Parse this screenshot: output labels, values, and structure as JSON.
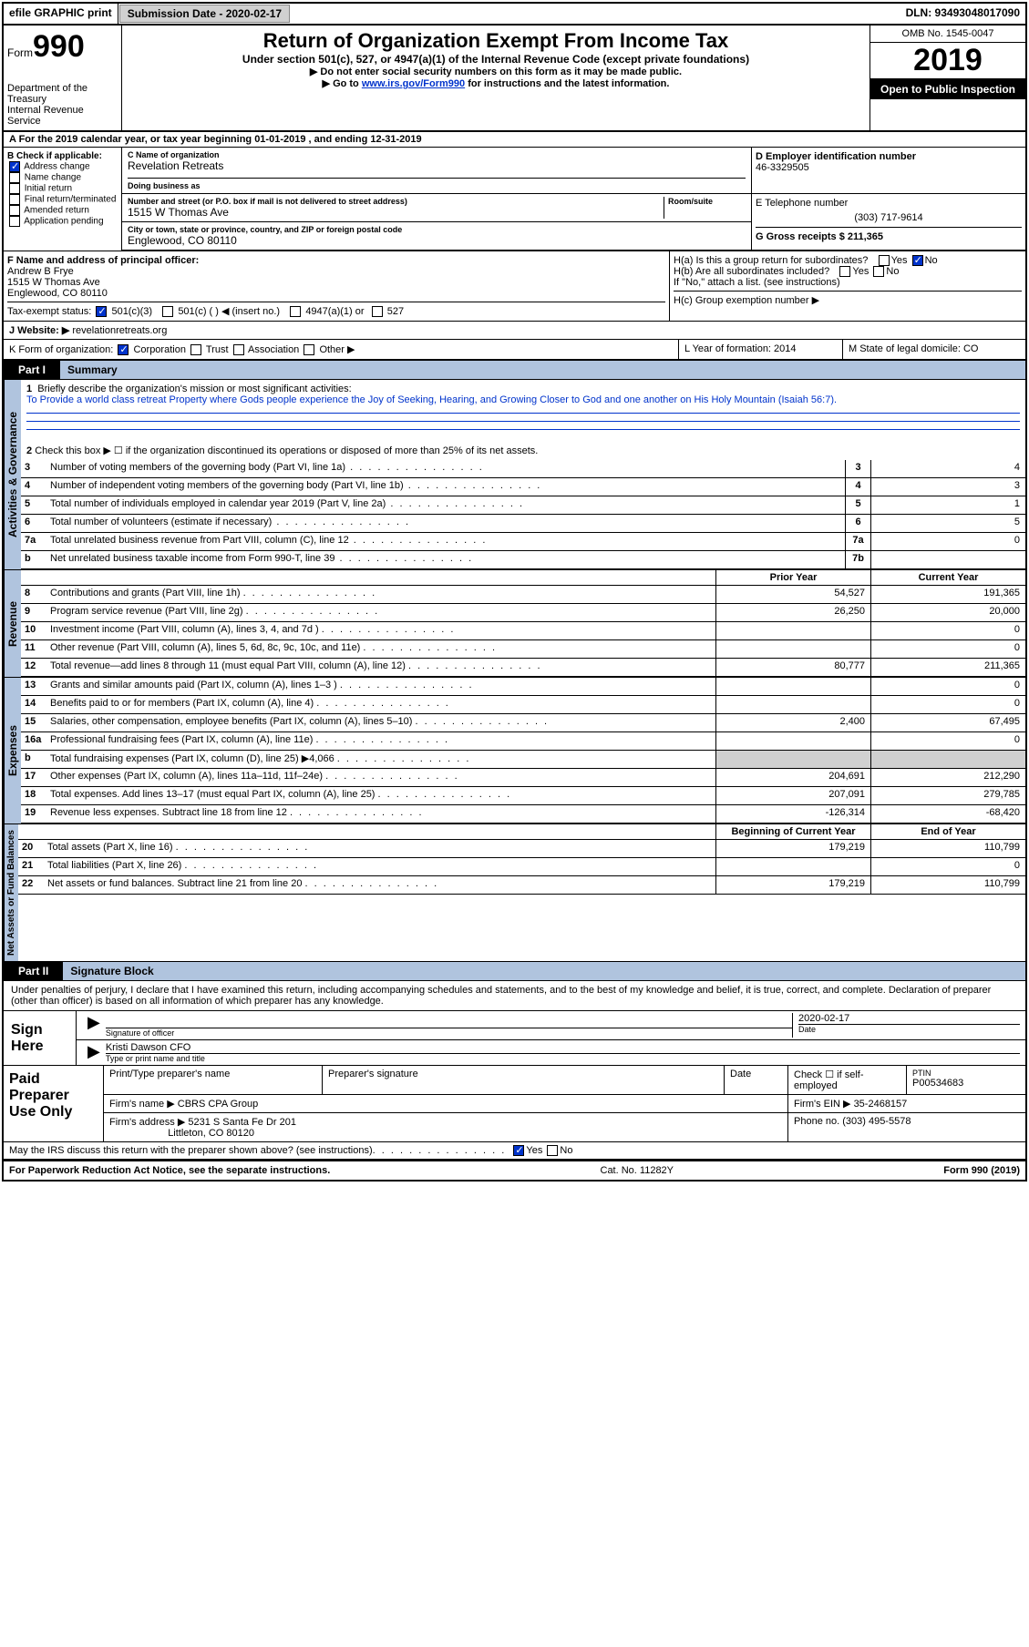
{
  "top_bar": {
    "efile": "efile GRAPHIC print",
    "submission_label": "Submission Date - 2020-02-17",
    "dln": "DLN: 93493048017090"
  },
  "header": {
    "form_word": "Form",
    "form_number": "990",
    "dept1": "Department of the Treasury",
    "dept2": "Internal Revenue Service",
    "title": "Return of Organization Exempt From Income Tax",
    "subtitle": "Under section 501(c), 527, or 4947(a)(1) of the Internal Revenue Code (except private foundations)",
    "instr1": "▶ Do not enter social security numbers on this form as it may be made public.",
    "instr2_prefix": "▶ Go to ",
    "instr2_link": "www.irs.gov/Form990",
    "instr2_suffix": " for instructions and the latest information.",
    "omb": "OMB No. 1545-0047",
    "year": "2019",
    "open_insp": "Open to Public Inspection"
  },
  "row_a": "A For the 2019 calendar year, or tax year beginning 01-01-2019    , and ending 12-31-2019",
  "section_b": {
    "label": "B Check if applicable:",
    "items": [
      "Address change",
      "Name change",
      "Initial return",
      "Final return/terminated",
      "Amended return",
      "Application pending"
    ],
    "checked_index": 0
  },
  "section_c": {
    "name_label": "C Name of organization",
    "name": "Revelation Retreats",
    "dba_label": "Doing business as",
    "dba": "",
    "addr_label": "Number and street (or P.O. box if mail is not delivered to street address)",
    "room_label": "Room/suite",
    "addr": "1515 W Thomas Ave",
    "city_label": "City or town, state or province, country, and ZIP or foreign postal code",
    "city": "Englewood, CO  80110"
  },
  "section_d": {
    "ein_label": "D Employer identification number",
    "ein": "46-3329505",
    "phone_label": "E Telephone number",
    "phone": "(303) 717-9614",
    "gross_label": "G Gross receipts $ 211,365"
  },
  "section_f": {
    "label": "F  Name and address of principal officer:",
    "name": "Andrew B Frye",
    "addr1": "1515 W Thomas Ave",
    "addr2": "Englewood, CO  80110"
  },
  "section_h": {
    "ha": "H(a)  Is this a group return for subordinates?",
    "ha_yes": "Yes",
    "ha_no": "No",
    "ha_checked": "No",
    "hb": "H(b)  Are all subordinates included?",
    "hb_yes": "Yes",
    "hb_no": "No",
    "hb_note": "If \"No,\" attach a list. (see instructions)",
    "hc": "H(c)  Group exemption number ▶"
  },
  "tax_exempt": {
    "label": "Tax-exempt status:",
    "opt1": "501(c)(3)",
    "opt1_checked": true,
    "opt2": "501(c) (  ) ◀ (insert no.)",
    "opt3": "4947(a)(1) or",
    "opt4": "527"
  },
  "website": {
    "label": "J   Website: ▶",
    "value": "revelationretreats.org"
  },
  "section_k": {
    "label": "K Form of organization:",
    "opts": [
      "Corporation",
      "Trust",
      "Association",
      "Other ▶"
    ],
    "checked_index": 0
  },
  "section_l": {
    "label": "L Year of formation: 2014"
  },
  "section_m": {
    "label": "M State of legal domicile: CO"
  },
  "part1": {
    "tab": "Part I",
    "title": "Summary",
    "q1_label": "1",
    "q1_text": "Briefly describe the organization's mission or most significant activities:",
    "q1_answer": "To Provide a world class retreat Property where Gods people experience the Joy of Seeking, Hearing, and Growing Closer to God and one another on His Holy Mountain (Isaiah 56:7).",
    "q2": "Check this box ▶ ☐  if the organization discontinued its operations or disposed of more than 25% of its net assets."
  },
  "governance_lines": [
    {
      "num": "3",
      "desc": "Number of voting members of the governing body (Part VI, line 1a)",
      "box": "3",
      "val": "4"
    },
    {
      "num": "4",
      "desc": "Number of independent voting members of the governing body (Part VI, line 1b)",
      "box": "4",
      "val": "3"
    },
    {
      "num": "5",
      "desc": "Total number of individuals employed in calendar year 2019 (Part V, line 2a)",
      "box": "5",
      "val": "1"
    },
    {
      "num": "6",
      "desc": "Total number of volunteers (estimate if necessary)",
      "box": "6",
      "val": "5"
    },
    {
      "num": "7a",
      "desc": "Total unrelated business revenue from Part VIII, column (C), line 12",
      "box": "7a",
      "val": "0"
    },
    {
      "num": "b",
      "desc": "Net unrelated business taxable income from Form 990-T, line 39",
      "box": "7b",
      "val": ""
    }
  ],
  "twocol_header": {
    "h1": "Prior Year",
    "h2": "Current Year"
  },
  "revenue_lines": [
    {
      "num": "8",
      "desc": "Contributions and grants (Part VIII, line 1h)",
      "py": "54,527",
      "cy": "191,365"
    },
    {
      "num": "9",
      "desc": "Program service revenue (Part VIII, line 2g)",
      "py": "26,250",
      "cy": "20,000"
    },
    {
      "num": "10",
      "desc": "Investment income (Part VIII, column (A), lines 3, 4, and 7d )",
      "py": "",
      "cy": "0"
    },
    {
      "num": "11",
      "desc": "Other revenue (Part VIII, column (A), lines 5, 6d, 8c, 9c, 10c, and 11e)",
      "py": "",
      "cy": "0"
    },
    {
      "num": "12",
      "desc": "Total revenue—add lines 8 through 11 (must equal Part VIII, column (A), line 12)",
      "py": "80,777",
      "cy": "211,365"
    }
  ],
  "expense_lines": [
    {
      "num": "13",
      "desc": "Grants and similar amounts paid (Part IX, column (A), lines 1–3 )",
      "py": "",
      "cy": "0"
    },
    {
      "num": "14",
      "desc": "Benefits paid to or for members (Part IX, column (A), line 4)",
      "py": "",
      "cy": "0"
    },
    {
      "num": "15",
      "desc": "Salaries, other compensation, employee benefits (Part IX, column (A), lines 5–10)",
      "py": "2,400",
      "cy": "67,495"
    },
    {
      "num": "16a",
      "desc": "Professional fundraising fees (Part IX, column (A), line 11e)",
      "py": "",
      "cy": "0"
    },
    {
      "num": "b",
      "desc": "Total fundraising expenses (Part IX, column (D), line 25) ▶4,066",
      "py": "shade",
      "cy": "shade"
    },
    {
      "num": "17",
      "desc": "Other expenses (Part IX, column (A), lines 11a–11d, 11f–24e)",
      "py": "204,691",
      "cy": "212,290"
    },
    {
      "num": "18",
      "desc": "Total expenses. Add lines 13–17 (must equal Part IX, column (A), line 25)",
      "py": "207,091",
      "cy": "279,785"
    },
    {
      "num": "19",
      "desc": "Revenue less expenses. Subtract line 18 from line 12",
      "py": "-126,314",
      "cy": "-68,420"
    }
  ],
  "netassets_header": {
    "h1": "Beginning of Current Year",
    "h2": "End of Year"
  },
  "netassets_lines": [
    {
      "num": "20",
      "desc": "Total assets (Part X, line 16)",
      "py": "179,219",
      "cy": "110,799"
    },
    {
      "num": "21",
      "desc": "Total liabilities (Part X, line 26)",
      "py": "",
      "cy": "0"
    },
    {
      "num": "22",
      "desc": "Net assets or fund balances. Subtract line 21 from line 20",
      "py": "179,219",
      "cy": "110,799"
    }
  ],
  "vtabs": {
    "gov": "Activities & Governance",
    "rev": "Revenue",
    "exp": "Expenses",
    "net": "Net Assets or Fund Balances"
  },
  "part2": {
    "tab": "Part II",
    "title": "Signature Block",
    "penalties": "Under penalties of perjury, I declare that I have examined this return, including accompanying schedules and statements, and to the best of my knowledge and belief, it is true, correct, and complete. Declaration of preparer (other than officer) is based on all information of which preparer has any knowledge."
  },
  "sign_here": {
    "label": "Sign Here",
    "sig_label": "Signature of officer",
    "date_label": "Date",
    "date": "2020-02-17",
    "name": "Kristi Dawson  CFO",
    "name_label": "Type or print name and title"
  },
  "paid_preparer": {
    "label": "Paid Preparer Use Only",
    "h1": "Print/Type preparer's name",
    "h2": "Preparer's signature",
    "h3": "Date",
    "h4": "Check ☐ if self-employed",
    "h5_label": "PTIN",
    "h5": "P00534683",
    "firm_name_label": "Firm's name    ▶",
    "firm_name": "CBRS CPA Group",
    "firm_ein_label": "Firm's EIN ▶",
    "firm_ein": "35-2468157",
    "firm_addr_label": "Firm's address ▶",
    "firm_addr1": "5231 S Santa Fe Dr 201",
    "firm_addr2": "Littleton, CO  80120",
    "phone_label": "Phone no.",
    "phone": "(303) 495-5578"
  },
  "discuss": {
    "text": "May the IRS discuss this return with the preparer shown above? (see instructions)",
    "yes": "Yes",
    "no": "No",
    "checked": "Yes"
  },
  "footer": {
    "left": "For Paperwork Reduction Act Notice, see the separate instructions.",
    "mid": "Cat. No. 11282Y",
    "right": "Form 990 (2019)"
  },
  "colors": {
    "link": "#0033cc",
    "tab_bg": "#b0c4de",
    "shade": "#d0d0d0",
    "black": "#000000"
  }
}
